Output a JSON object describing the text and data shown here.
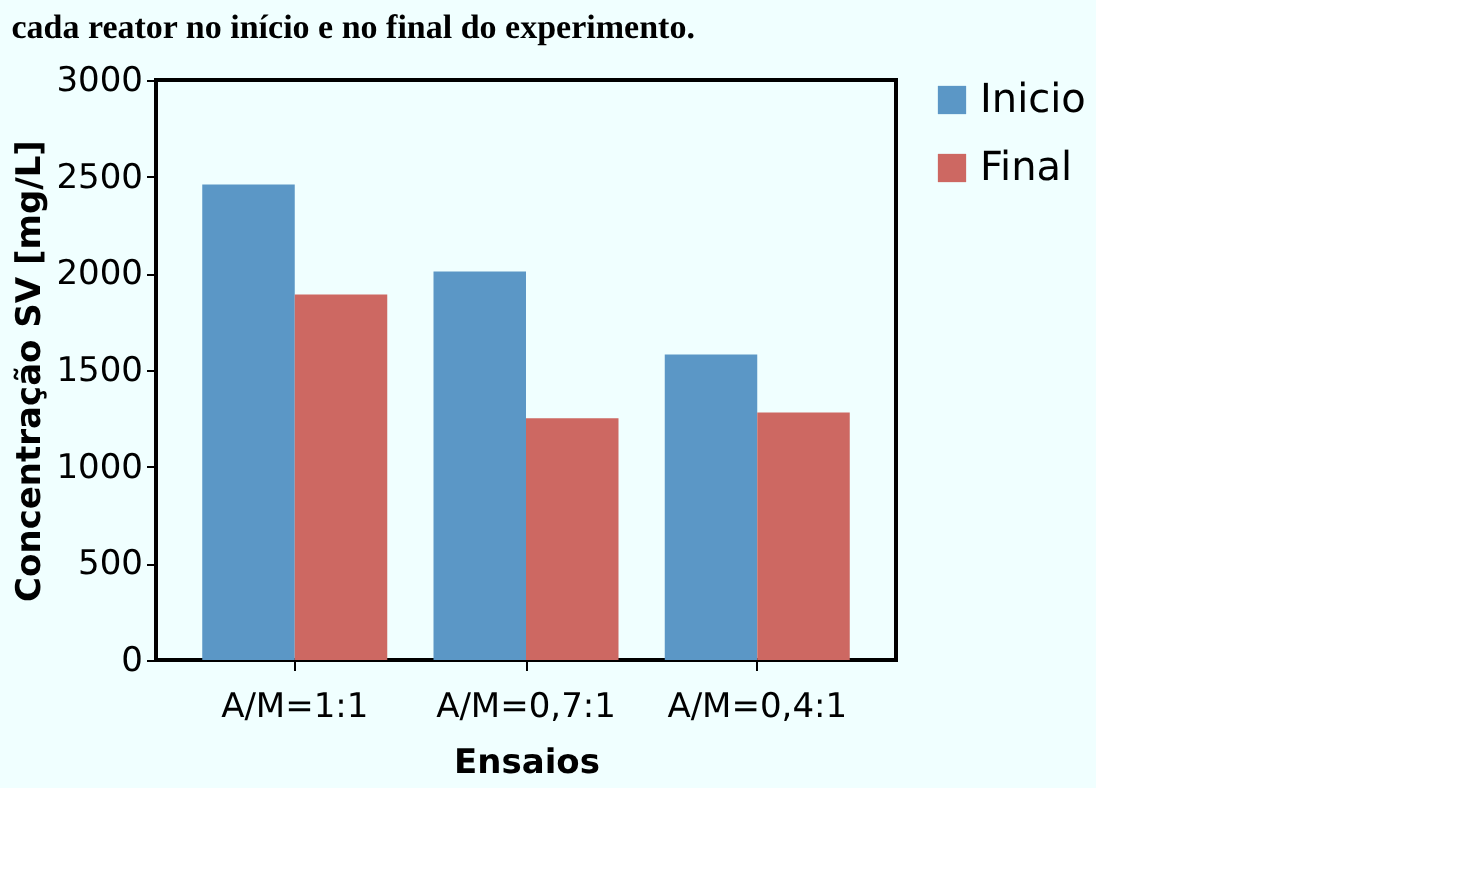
{
  "chart_data": {
    "type": "bar",
    "title": "cada reator no início e no final do experimento.",
    "xlabel": "Ensaios",
    "ylabel": "Concentração SV [mg/L]",
    "categories": [
      "A/M=1:1",
      "A/M=0,7:1",
      "A/M=0,4:1"
    ],
    "series": [
      {
        "name": "Inicio",
        "color": "#5b97c6",
        "values": [
          2460,
          2010,
          1580
        ]
      },
      {
        "name": "Final",
        "color": "#cd6862",
        "values": [
          1890,
          1250,
          1280
        ]
      }
    ],
    "ylim": [
      0,
      3000
    ],
    "yticks": [
      0,
      500,
      1000,
      1500,
      2000,
      2500,
      3000
    ],
    "grid": false,
    "legend": "right"
  }
}
